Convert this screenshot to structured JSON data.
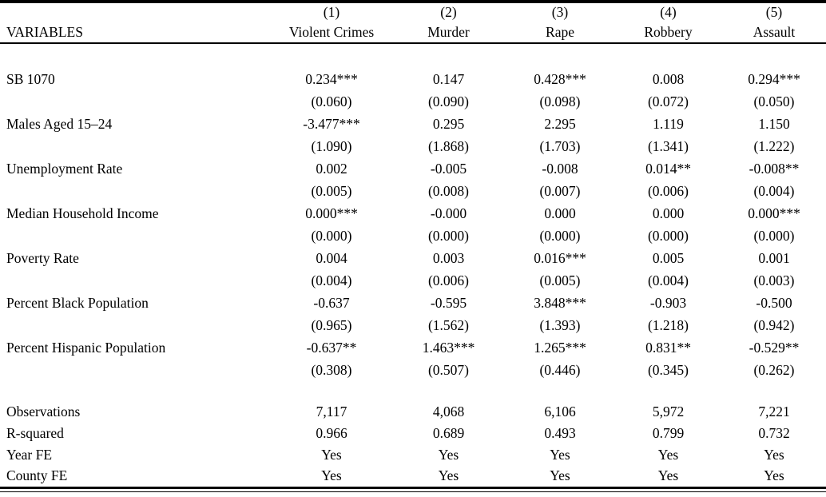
{
  "table": {
    "header": {
      "variables_label": "VARIABLES",
      "model_numbers": [
        "(1)",
        "(2)",
        "(3)",
        "(4)",
        "(5)"
      ],
      "columns": [
        "Violent Crimes",
        "Murder",
        "Rape",
        "Robbery",
        "Assault"
      ]
    },
    "rows": [
      {
        "label": "SB 1070",
        "coef": [
          "0.234***",
          "0.147",
          "0.428***",
          "0.008",
          "0.294***"
        ],
        "se": [
          "(0.060)",
          "(0.090)",
          "(0.098)",
          "(0.072)",
          "(0.050)"
        ]
      },
      {
        "label": "Males Aged 15–24",
        "coef": [
          "-3.477***",
          "0.295",
          "2.295",
          "1.119",
          "1.150"
        ],
        "se": [
          "(1.090)",
          "(1.868)",
          "(1.703)",
          "(1.341)",
          "(1.222)"
        ]
      },
      {
        "label": "Unemployment Rate",
        "coef": [
          "0.002",
          "-0.005",
          "-0.008",
          "0.014**",
          "-0.008**"
        ],
        "se": [
          "(0.005)",
          "(0.008)",
          "(0.007)",
          "(0.006)",
          "(0.004)"
        ]
      },
      {
        "label": "Median Household Income",
        "coef": [
          "0.000***",
          "-0.000",
          "0.000",
          "0.000",
          "0.000***"
        ],
        "se": [
          "(0.000)",
          "(0.000)",
          "(0.000)",
          "(0.000)",
          "(0.000)"
        ]
      },
      {
        "label": "Poverty Rate",
        "coef": [
          "0.004",
          "0.003",
          "0.016***",
          "0.005",
          "0.001"
        ],
        "se": [
          "(0.004)",
          "(0.006)",
          "(0.005)",
          "(0.004)",
          "(0.003)"
        ]
      },
      {
        "label": "Percent Black Population",
        "coef": [
          "-0.637",
          "-0.595",
          "3.848***",
          "-0.903",
          "-0.500"
        ],
        "se": [
          "(0.965)",
          "(1.562)",
          "(1.393)",
          "(1.218)",
          "(0.942)"
        ]
      },
      {
        "label": "Percent Hispanic Population",
        "coef": [
          "-0.637**",
          "1.463***",
          "1.265***",
          "0.831**",
          "-0.529**"
        ],
        "se": [
          "(0.308)",
          "(0.507)",
          "(0.446)",
          "(0.345)",
          "(0.262)"
        ]
      }
    ],
    "summary": [
      {
        "label": "Observations",
        "values": [
          "7,117",
          "4,068",
          "6,106",
          "5,972",
          "7,221"
        ]
      },
      {
        "label": "R-squared",
        "values": [
          "0.966",
          "0.689",
          "0.493",
          "0.799",
          "0.732"
        ]
      },
      {
        "label": "Year FE",
        "values": [
          "Yes",
          "Yes",
          "Yes",
          "Yes",
          "Yes"
        ]
      },
      {
        "label": "County FE",
        "values": [
          "Yes",
          "Yes",
          "Yes",
          "Yes",
          "Yes"
        ]
      }
    ],
    "colors": {
      "text": "#000000",
      "background": "#ffffff",
      "rule": "#000000"
    }
  }
}
